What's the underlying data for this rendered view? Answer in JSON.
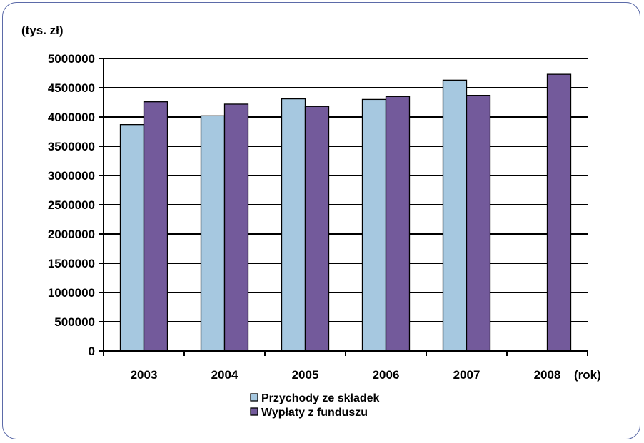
{
  "chart_data": {
    "type": "bar",
    "ylabel": "(tys. zł)",
    "xlabel": "(rok)",
    "categories": [
      "2003",
      "2004",
      "2005",
      "2006",
      "2007",
      "2008"
    ],
    "ylim": [
      0,
      5000000
    ],
    "yticks": [
      "0",
      "500000",
      "1000000",
      "1500000",
      "2000000",
      "2500000",
      "3000000",
      "3500000",
      "4000000",
      "4500000",
      "5000000"
    ],
    "grid": true,
    "legend_position": "bottom",
    "series": [
      {
        "name": "Przychody ze składek",
        "color": "#a6c8e0",
        "values": [
          3870000,
          4020000,
          4310000,
          4300000,
          4630000,
          null
        ]
      },
      {
        "name": "Wypłaty z funduszu",
        "color": "#735a9b",
        "values": [
          4260000,
          4220000,
          4180000,
          4350000,
          4370000,
          4730000
        ]
      }
    ]
  }
}
